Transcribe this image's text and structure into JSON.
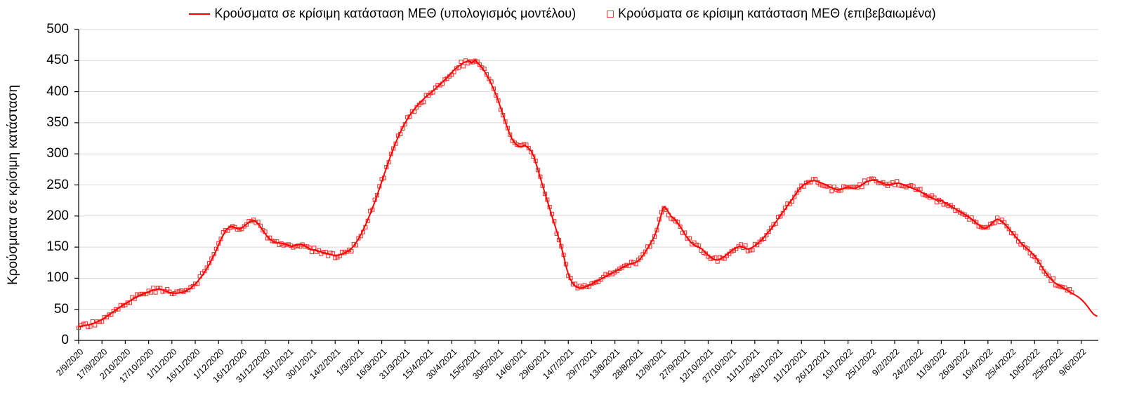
{
  "legend": {
    "model_label": "Κρούσματα σε κρίσιμη κατάσταση ΜΕΘ (υπολογισμός μοντέλου)",
    "confirmed_label": "Κρούσματα σε κρίσιμη κατάσταση ΜΕΘ (επιβεβαιωμένα)"
  },
  "colors": {
    "model_line": "#FF0000",
    "confirmed_marker": "#FF3333",
    "gridline": "#D9D9D9",
    "axis": "#000000",
    "text": "#000000",
    "background": "#FFFFFF"
  },
  "chart_data": {
    "type": "line",
    "title": "",
    "xlabel": "",
    "ylabel": "Κρούσματα σε κρίσιμη κατάσταση",
    "ylim": [
      0,
      500
    ],
    "y_ticks": [
      0,
      50,
      100,
      150,
      200,
      250,
      300,
      350,
      400,
      450,
      500
    ],
    "grid": "horizontal",
    "legend_position": "top-center",
    "x_range_days": [
      0,
      656
    ],
    "x_tick_interval_days": 15,
    "x_tick_labels": [
      "2/9/2020",
      "17/9/2020",
      "2/10/2020",
      "17/10/2020",
      "1/11/2020",
      "16/11/2020",
      "1/12/2020",
      "16/12/2020",
      "31/12/2020",
      "15/1/2021",
      "30/1/2021",
      "14/2/2021",
      "1/3/2021",
      "16/3/2021",
      "31/3/2021",
      "15/4/2021",
      "30/4/2021",
      "15/5/2021",
      "30/5/2021",
      "14/6/2021",
      "29/6/2021",
      "14/7/2021",
      "29/7/2021",
      "13/8/2021",
      "28/8/2021",
      "12/9/2021",
      "27/9/2021",
      "12/10/2021",
      "27/10/2021",
      "11/11/2021",
      "26/11/2021",
      "11/12/2021",
      "26/12/2021",
      "10/1/2022",
      "25/1/2022",
      "9/2/2022",
      "24/2/2022",
      "11/3/2022",
      "26/3/2022",
      "10/4/2022",
      "25/4/2022",
      "10/5/2022",
      "25/5/2022",
      "9/6/2022"
    ],
    "series": [
      {
        "name": "Κρούσματα σε κρίσιμη κατάσταση ΜΕΘ (υπολογισμός μοντέλου)",
        "type": "line",
        "color": "#FF0000",
        "points": [
          [
            0,
            22
          ],
          [
            4,
            24
          ],
          [
            8,
            26
          ],
          [
            12,
            30
          ],
          [
            16,
            35
          ],
          [
            20,
            42
          ],
          [
            24,
            49
          ],
          [
            28,
            56
          ],
          [
            32,
            62
          ],
          [
            36,
            68
          ],
          [
            40,
            73
          ],
          [
            44,
            77
          ],
          [
            48,
            81
          ],
          [
            52,
            83
          ],
          [
            56,
            79
          ],
          [
            60,
            76
          ],
          [
            64,
            76
          ],
          [
            68,
            78
          ],
          [
            72,
            84
          ],
          [
            76,
            93
          ],
          [
            80,
            106
          ],
          [
            84,
            122
          ],
          [
            88,
            142
          ],
          [
            92,
            165
          ],
          [
            95,
            178
          ],
          [
            98,
            184
          ],
          [
            101,
            181
          ],
          [
            104,
            179
          ],
          [
            107,
            185
          ],
          [
            110,
            191
          ],
          [
            113,
            193
          ],
          [
            116,
            186
          ],
          [
            119,
            175
          ],
          [
            122,
            165
          ],
          [
            125,
            159
          ],
          [
            128,
            157
          ],
          [
            131,
            156
          ],
          [
            134,
            154
          ],
          [
            137,
            151
          ],
          [
            140,
            153
          ],
          [
            143,
            155
          ],
          [
            146,
            151
          ],
          [
            149,
            147
          ],
          [
            152,
            145
          ],
          [
            155,
            143
          ],
          [
            158,
            141
          ],
          [
            161,
            139
          ],
          [
            164,
            137
          ],
          [
            167,
            137
          ],
          [
            170,
            139
          ],
          [
            173,
            143
          ],
          [
            176,
            149
          ],
          [
            179,
            159
          ],
          [
            182,
            172
          ],
          [
            185,
            188
          ],
          [
            188,
            206
          ],
          [
            191,
            226
          ],
          [
            194,
            248
          ],
          [
            197,
            270
          ],
          [
            200,
            292
          ],
          [
            203,
            312
          ],
          [
            206,
            330
          ],
          [
            209,
            345
          ],
          [
            212,
            358
          ],
          [
            215,
            369
          ],
          [
            218,
            378
          ],
          [
            221,
            386
          ],
          [
            224,
            393
          ],
          [
            227,
            399
          ],
          [
            230,
            406
          ],
          [
            233,
            413
          ],
          [
            236,
            420
          ],
          [
            239,
            428
          ],
          [
            242,
            436
          ],
          [
            245,
            442
          ],
          [
            248,
            447
          ],
          [
            251,
            450
          ],
          [
            253,
            446
          ],
          [
            255,
            451
          ],
          [
            257,
            446
          ],
          [
            259,
            440
          ],
          [
            261,
            433
          ],
          [
            263,
            425
          ],
          [
            265,
            415
          ],
          [
            267,
            404
          ],
          [
            269,
            392
          ],
          [
            271,
            378
          ],
          [
            273,
            363
          ],
          [
            275,
            348
          ],
          [
            277,
            334
          ],
          [
            279,
            323
          ],
          [
            281,
            316
          ],
          [
            283,
            312
          ],
          [
            285,
            311
          ],
          [
            287,
            314
          ],
          [
            289,
            310
          ],
          [
            291,
            305
          ],
          [
            293,
            295
          ],
          [
            296,
            270
          ],
          [
            299,
            245
          ],
          [
            302,
            220
          ],
          [
            305,
            196
          ],
          [
            308,
            172
          ],
          [
            310,
            155
          ],
          [
            312,
            136
          ],
          [
            314,
            115
          ],
          [
            316,
            100
          ],
          [
            318,
            91
          ],
          [
            320,
            86
          ],
          [
            322,
            84
          ],
          [
            325,
            85
          ],
          [
            328,
            88
          ],
          [
            331,
            92
          ],
          [
            334,
            96
          ],
          [
            337,
            100
          ],
          [
            340,
            104
          ],
          [
            343,
            108
          ],
          [
            346,
            112
          ],
          [
            349,
            116
          ],
          [
            352,
            120
          ],
          [
            355,
            123
          ],
          [
            358,
            125
          ],
          [
            361,
            130
          ],
          [
            364,
            140
          ],
          [
            367,
            152
          ],
          [
            370,
            165
          ],
          [
            372,
            178
          ],
          [
            374,
            195
          ],
          [
            376,
            213
          ],
          [
            377,
            215
          ],
          [
            379,
            208
          ],
          [
            381,
            200
          ],
          [
            383,
            196
          ],
          [
            385,
            190
          ],
          [
            387,
            183
          ],
          [
            389,
            175
          ],
          [
            391,
            167
          ],
          [
            393,
            160
          ],
          [
            395,
            155
          ],
          [
            397,
            152
          ],
          [
            399,
            150
          ],
          [
            401,
            147
          ],
          [
            403,
            142
          ],
          [
            405,
            137
          ],
          [
            407,
            133
          ],
          [
            409,
            130
          ],
          [
            411,
            129
          ],
          [
            413,
            131
          ],
          [
            415,
            134
          ],
          [
            417,
            138
          ],
          [
            419,
            142
          ],
          [
            421,
            146
          ],
          [
            423,
            149
          ],
          [
            425,
            151
          ],
          [
            427,
            150
          ],
          [
            429,
            148
          ],
          [
            431,
            147
          ],
          [
            433,
            149
          ],
          [
            435,
            152
          ],
          [
            437,
            156
          ],
          [
            439,
            161
          ],
          [
            441,
            166
          ],
          [
            443,
            172
          ],
          [
            445,
            178
          ],
          [
            447,
            185
          ],
          [
            449,
            192
          ],
          [
            451,
            199
          ],
          [
            453,
            206
          ],
          [
            455,
            213
          ],
          [
            457,
            220
          ],
          [
            459,
            227
          ],
          [
            461,
            234
          ],
          [
            463,
            241
          ],
          [
            465,
            247
          ],
          [
            467,
            251
          ],
          [
            469,
            254
          ],
          [
            471,
            256
          ],
          [
            473,
            257
          ],
          [
            475,
            256
          ],
          [
            477,
            254
          ],
          [
            479,
            252
          ],
          [
            481,
            250
          ],
          [
            483,
            247
          ],
          [
            485,
            245
          ],
          [
            487,
            243
          ],
          [
            489,
            242
          ],
          [
            491,
            243
          ],
          [
            493,
            245
          ],
          [
            495,
            247
          ],
          [
            497,
            245
          ],
          [
            499,
            244
          ],
          [
            501,
            246
          ],
          [
            503,
            249
          ],
          [
            505,
            252
          ],
          [
            507,
            255
          ],
          [
            509,
            257
          ],
          [
            511,
            258
          ],
          [
            513,
            257
          ],
          [
            515,
            255
          ],
          [
            517,
            253
          ],
          [
            519,
            251
          ],
          [
            521,
            250
          ],
          [
            523,
            251
          ],
          [
            525,
            252
          ],
          [
            527,
            253
          ],
          [
            529,
            252
          ],
          [
            531,
            250
          ],
          [
            533,
            248
          ],
          [
            535,
            246
          ],
          [
            537,
            244
          ],
          [
            539,
            242
          ],
          [
            541,
            240
          ],
          [
            543,
            237
          ],
          [
            545,
            234
          ],
          [
            547,
            231
          ],
          [
            549,
            229
          ],
          [
            551,
            227
          ],
          [
            553,
            226
          ],
          [
            555,
            225
          ],
          [
            557,
            222
          ],
          [
            559,
            219
          ],
          [
            561,
            216
          ],
          [
            563,
            213
          ],
          [
            565,
            210
          ],
          [
            567,
            207
          ],
          [
            569,
            204
          ],
          [
            571,
            201
          ],
          [
            573,
            198
          ],
          [
            575,
            194
          ],
          [
            577,
            190
          ],
          [
            579,
            186
          ],
          [
            581,
            182
          ],
          [
            583,
            180
          ],
          [
            585,
            182
          ],
          [
            587,
            187
          ],
          [
            589,
            192
          ],
          [
            591,
            195
          ],
          [
            593,
            193
          ],
          [
            595,
            189
          ],
          [
            597,
            184
          ],
          [
            599,
            178
          ],
          [
            601,
            172
          ],
          [
            603,
            166
          ],
          [
            605,
            160
          ],
          [
            607,
            155
          ],
          [
            609,
            150
          ],
          [
            611,
            146
          ],
          [
            613,
            141
          ],
          [
            615,
            136
          ],
          [
            617,
            129
          ],
          [
            619,
            121
          ],
          [
            621,
            113
          ],
          [
            623,
            106
          ],
          [
            625,
            100
          ],
          [
            627,
            95
          ],
          [
            629,
            91
          ],
          [
            631,
            88
          ],
          [
            633,
            85
          ],
          [
            635,
            82
          ],
          [
            637,
            79
          ],
          [
            639,
            76
          ],
          [
            641,
            73
          ],
          [
            643,
            70
          ],
          [
            645,
            66
          ],
          [
            647,
            61
          ],
          [
            649,
            55
          ],
          [
            651,
            48
          ],
          [
            653,
            42
          ],
          [
            655,
            39
          ]
        ]
      },
      {
        "name": "Κρούσματα σε κρίσιμη κατάσταση ΜΕΘ (επιβεβαιωμένα)",
        "type": "scatter",
        "marker": "open-square",
        "color": "#FF3333",
        "follows_model_series": true,
        "sampling": {
          "x_start": 0,
          "x_end": 640,
          "x_step": 1.5
        },
        "noise": {
          "a1": 7,
          "a2": 4
        }
      }
    ]
  }
}
